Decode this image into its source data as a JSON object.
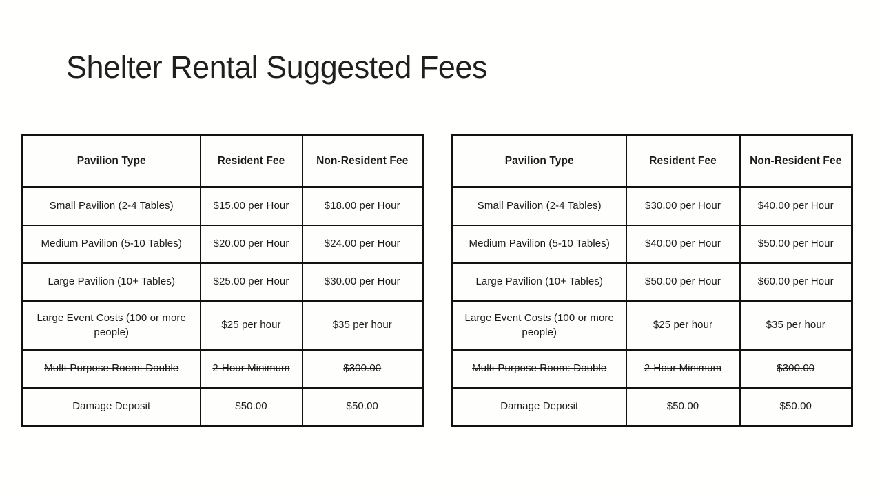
{
  "slide": {
    "title": "Shelter Rental Suggested Fees",
    "background_color": "#fffffd",
    "text_color": "#1b1b1b",
    "border_color": "#121212"
  },
  "tables": [
    {
      "name": "left-fee-table",
      "headers": [
        "Pavilion Type",
        "Resident Fee",
        "Non-Resident Fee"
      ],
      "rows": [
        {
          "strikethrough": false,
          "cells": [
            "Small Pavilion (2-4 Tables)",
            "$15.00 per Hour",
            "$18.00 per Hour"
          ]
        },
        {
          "strikethrough": false,
          "cells": [
            "Medium Pavilion (5-10 Tables)",
            "$20.00 per Hour",
            "$24.00 per Hour"
          ]
        },
        {
          "strikethrough": false,
          "cells": [
            "Large Pavilion (10+ Tables)",
            "$25.00 per Hour",
            "$30.00 per Hour"
          ]
        },
        {
          "strikethrough": false,
          "cells": [
            "Large Event Costs (100 or more people)",
            "$25 per hour",
            "$35 per hour"
          ]
        },
        {
          "strikethrough": true,
          "cells": [
            "Multi-Purpose Room: Double",
            "2-Hour Minimum",
            "$300.00"
          ]
        },
        {
          "strikethrough": false,
          "cells": [
            "Damage Deposit",
            "$50.00",
            "$50.00"
          ]
        }
      ]
    },
    {
      "name": "right-fee-table",
      "headers": [
        "Pavilion Type",
        "Resident Fee",
        "Non-Resident Fee"
      ],
      "rows": [
        {
          "strikethrough": false,
          "cells": [
            "Small Pavilion (2-4 Tables)",
            "$30.00 per Hour",
            "$40.00 per Hour"
          ]
        },
        {
          "strikethrough": false,
          "cells": [
            "Medium Pavilion (5-10 Tables)",
            "$40.00 per Hour",
            "$50.00 per Hour"
          ]
        },
        {
          "strikethrough": false,
          "cells": [
            "Large Pavilion (10+ Tables)",
            "$50.00 per Hour",
            "$60.00 per Hour"
          ]
        },
        {
          "strikethrough": false,
          "cells": [
            "Large Event Costs (100 or more people)",
            "$25 per hour",
            "$35 per hour"
          ]
        },
        {
          "strikethrough": true,
          "cells": [
            "Multi-Purpose Room: Double",
            "2-Hour Minimum",
            "$300.00"
          ]
        },
        {
          "strikethrough": false,
          "cells": [
            "Damage Deposit",
            "$50.00",
            "$50.00"
          ]
        }
      ]
    }
  ]
}
